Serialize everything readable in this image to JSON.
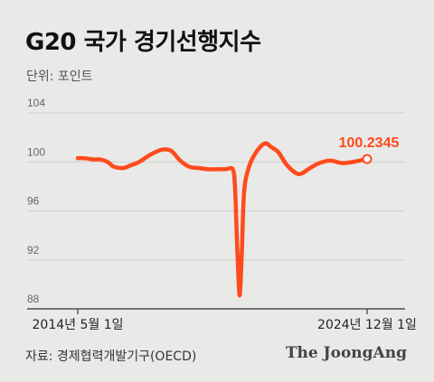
{
  "title": "G20 국가 경기선행지수",
  "unit_label": "단위: 포인트",
  "source": "자료: 경제협력개발기구(OECD)",
  "brand": "The JoongAng",
  "colors": {
    "line": "#ff4a1c",
    "background": "#e9e9e7",
    "grid": "#cfcfcf"
  },
  "chart_data": {
    "type": "line",
    "ylim": [
      88,
      104
    ],
    "yticks": [
      "104",
      "100",
      "96",
      "92",
      "88"
    ],
    "grid": true,
    "x_labels": {
      "start": "2014년 5월 1일",
      "end": "2024년 12월 1일"
    },
    "end_label": "100.2345",
    "series": [
      {
        "x": [
          "2014-05",
          "2014-08",
          "2014-12",
          "2015-03",
          "2015-06",
          "2015-09",
          "2016-01",
          "2016-04",
          "2016-08",
          "2017-01",
          "2017-06",
          "2017-10",
          "2018-02",
          "2018-06",
          "2018-10",
          "2019-02",
          "2019-06",
          "2019-10",
          "2020-01",
          "2020-02",
          "2020-03",
          "2020-04",
          "2020-05",
          "2020-06",
          "2020-08",
          "2020-11",
          "2021-03",
          "2021-06",
          "2021-09",
          "2022-01",
          "2022-06",
          "2022-11",
          "2023-03",
          "2023-08",
          "2024-01",
          "2024-06",
          "2024-12"
        ],
        "values": [
          100.3,
          100.3,
          100.2,
          100.2,
          100.0,
          99.6,
          99.5,
          99.7,
          100.0,
          100.6,
          101.0,
          100.9,
          100.1,
          99.6,
          99.5,
          99.4,
          99.4,
          99.4,
          99.4,
          98.0,
          93.0,
          89.1,
          92.5,
          97.5,
          99.5,
          100.7,
          101.5,
          101.2,
          100.8,
          99.7,
          99.0,
          99.5,
          99.9,
          100.1,
          99.9,
          100.0,
          100.2345
        ]
      }
    ]
  }
}
